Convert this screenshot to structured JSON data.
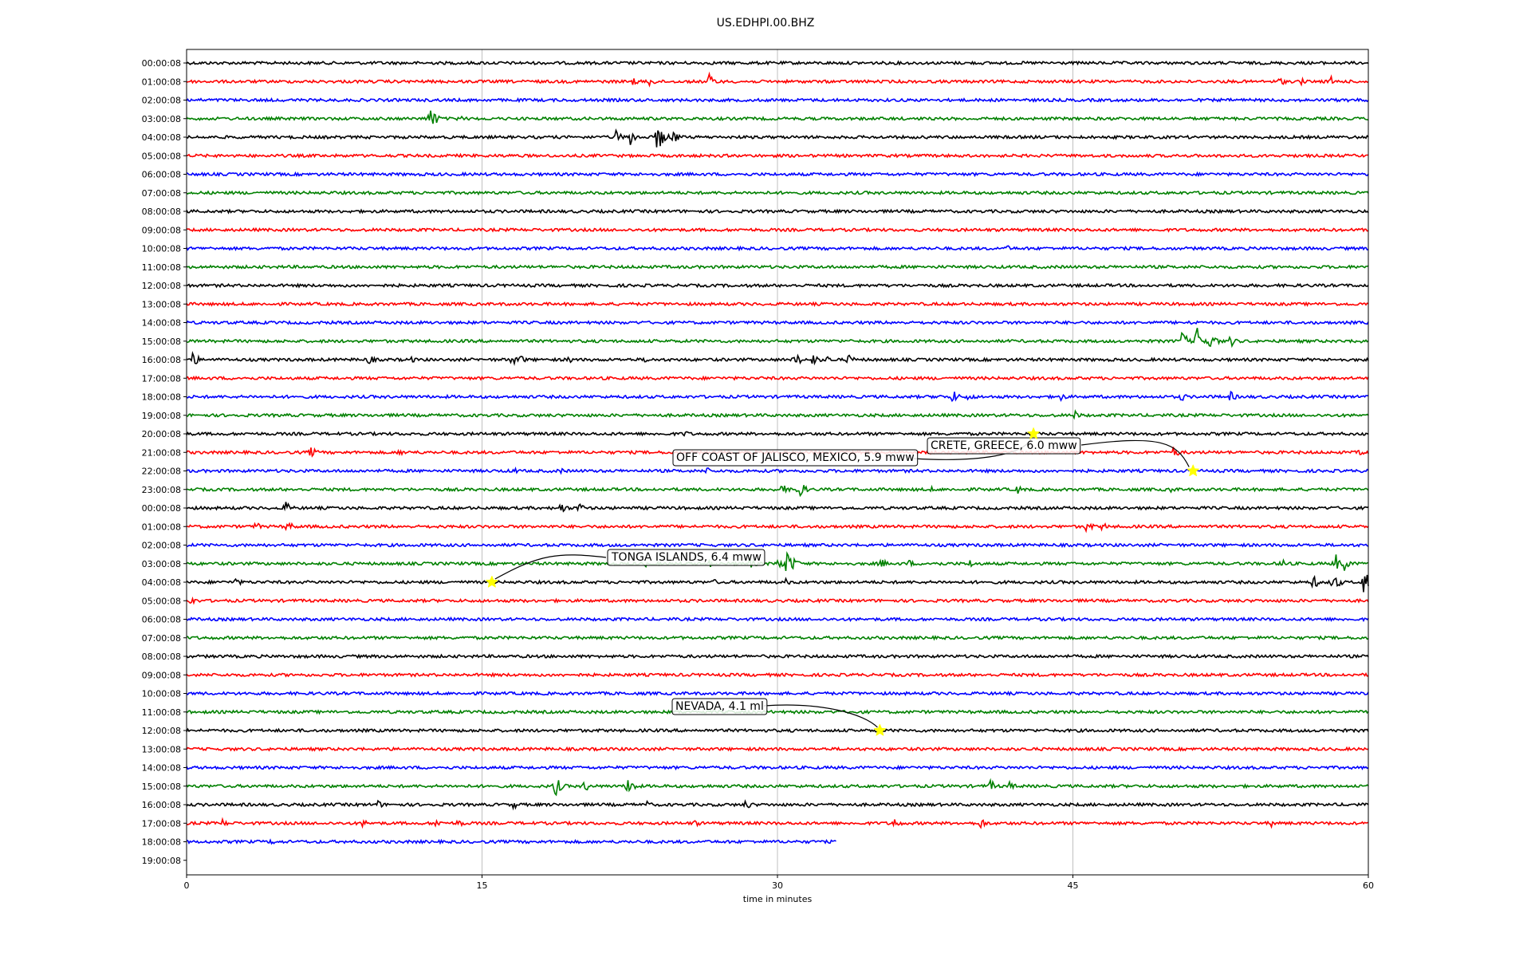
{
  "chart_data": {
    "type": "line",
    "title": "US.EDHPI.00.BHZ",
    "xlabel": "time in minutes",
    "ylabel": "",
    "xlim": [
      0,
      60
    ],
    "x_ticks": [
      0,
      15,
      30,
      45,
      60
    ],
    "grid": "vertical",
    "trace_colors": [
      "#000000",
      "#ff0000",
      "#0000ff",
      "#008000"
    ],
    "row_labels": [
      "00:00:08",
      "01:00:08",
      "02:00:08",
      "03:00:08",
      "04:00:08",
      "05:00:08",
      "06:00:08",
      "07:00:08",
      "08:00:08",
      "09:00:08",
      "10:00:08",
      "11:00:08",
      "12:00:08",
      "13:00:08",
      "14:00:08",
      "15:00:08",
      "16:00:08",
      "17:00:08",
      "18:00:08",
      "19:00:08",
      "20:00:08",
      "21:00:08",
      "22:00:08",
      "23:00:08",
      "00:00:08",
      "01:00:08",
      "02:00:08",
      "03:00:08",
      "04:00:08",
      "05:00:08",
      "06:00:08",
      "07:00:08",
      "08:00:08",
      "09:00:08",
      "10:00:08",
      "11:00:08",
      "12:00:08",
      "13:00:08",
      "14:00:08",
      "15:00:08",
      "16:00:08",
      "17:00:08",
      "18:00:08",
      "19:00:08"
    ],
    "last_trace_end_minute": 33,
    "bursts": [
      {
        "row": 1,
        "t": 22.7,
        "a": 6
      },
      {
        "row": 1,
        "t": 23.5,
        "a": 7
      },
      {
        "row": 1,
        "t": 26.5,
        "a": 11
      },
      {
        "row": 1,
        "t": 55.5,
        "a": 6
      },
      {
        "row": 1,
        "t": 56.5,
        "a": 6
      },
      {
        "row": 1,
        "t": 58.1,
        "a": 7
      },
      {
        "row": 2,
        "t": 58.9,
        "a": 4
      },
      {
        "row": 3,
        "t": 12.3,
        "a": 20
      },
      {
        "row": 3,
        "t": 13.8,
        "a": 5
      },
      {
        "row": 4,
        "t": 21.8,
        "a": 9
      },
      {
        "row": 4,
        "t": 22.5,
        "a": 12
      },
      {
        "row": 4,
        "t": 23.9,
        "a": 20
      },
      {
        "row": 4,
        "t": 24.7,
        "a": 10
      },
      {
        "row": 10,
        "t": 41.7,
        "a": 4
      },
      {
        "row": 14,
        "t": 51.0,
        "a": 6
      },
      {
        "row": 15,
        "t": 50.5,
        "a": 14
      },
      {
        "row": 15,
        "t": 51.3,
        "a": 20
      },
      {
        "row": 15,
        "t": 52.0,
        "a": 12
      },
      {
        "row": 15,
        "t": 53.0,
        "a": 8
      },
      {
        "row": 15,
        "t": 59.3,
        "a": 6
      },
      {
        "row": 16,
        "t": 0.3,
        "a": 10
      },
      {
        "row": 16,
        "t": 9.2,
        "a": 8
      },
      {
        "row": 16,
        "t": 11.3,
        "a": 6
      },
      {
        "row": 16,
        "t": 16.5,
        "a": 8
      },
      {
        "row": 16,
        "t": 16.9,
        "a": 7
      },
      {
        "row": 16,
        "t": 19.4,
        "a": 5
      },
      {
        "row": 16,
        "t": 23.3,
        "a": 5
      },
      {
        "row": 16,
        "t": 30.9,
        "a": 10
      },
      {
        "row": 16,
        "t": 31.8,
        "a": 8
      },
      {
        "row": 16,
        "t": 32.5,
        "a": 6
      },
      {
        "row": 16,
        "t": 33.6,
        "a": 7
      },
      {
        "row": 18,
        "t": 38.0,
        "a": 5
      },
      {
        "row": 18,
        "t": 38.9,
        "a": 9
      },
      {
        "row": 18,
        "t": 39.7,
        "a": 6
      },
      {
        "row": 18,
        "t": 44.3,
        "a": 7
      },
      {
        "row": 18,
        "t": 50.5,
        "a": 6
      },
      {
        "row": 18,
        "t": 53.0,
        "a": 7
      },
      {
        "row": 19,
        "t": 45.1,
        "a": 6
      },
      {
        "row": 20,
        "t": 25.3,
        "a": 5
      },
      {
        "row": 21,
        "t": 6.3,
        "a": 8
      },
      {
        "row": 21,
        "t": 10.8,
        "a": 5
      },
      {
        "row": 21,
        "t": 11.4,
        "a": 5
      },
      {
        "row": 21,
        "t": 50.1,
        "a": 8
      },
      {
        "row": 21,
        "t": 59.6,
        "a": 6
      },
      {
        "row": 22,
        "t": 16.6,
        "a": 5
      },
      {
        "row": 22,
        "t": 18.9,
        "a": 5
      },
      {
        "row": 22,
        "t": 26.4,
        "a": 5
      },
      {
        "row": 23,
        "t": 30.2,
        "a": 8
      },
      {
        "row": 23,
        "t": 31.0,
        "a": 16
      },
      {
        "row": 23,
        "t": 37.7,
        "a": 5
      },
      {
        "row": 23,
        "t": 42.2,
        "a": 6
      },
      {
        "row": 23,
        "t": 50.0,
        "a": 5
      },
      {
        "row": 24,
        "t": 5.0,
        "a": 9
      },
      {
        "row": 24,
        "t": 19.0,
        "a": 8
      },
      {
        "row": 24,
        "t": 19.9,
        "a": 7
      },
      {
        "row": 25,
        "t": 3.5,
        "a": 6
      },
      {
        "row": 25,
        "t": 5.1,
        "a": 8
      },
      {
        "row": 25,
        "t": 45.7,
        "a": 8
      },
      {
        "row": 25,
        "t": 46.5,
        "a": 6
      },
      {
        "row": 27,
        "t": 23.3,
        "a": 4
      },
      {
        "row": 27,
        "t": 26.5,
        "a": 6
      },
      {
        "row": 27,
        "t": 28.6,
        "a": 7
      },
      {
        "row": 27,
        "t": 30.0,
        "a": 10
      },
      {
        "row": 27,
        "t": 30.5,
        "a": 20
      },
      {
        "row": 27,
        "t": 35.2,
        "a": 8
      },
      {
        "row": 27,
        "t": 36.7,
        "a": 5
      },
      {
        "row": 27,
        "t": 38.1,
        "a": 5
      },
      {
        "row": 27,
        "t": 39.8,
        "a": 6
      },
      {
        "row": 27,
        "t": 55.6,
        "a": 8
      },
      {
        "row": 27,
        "t": 58.3,
        "a": 14
      },
      {
        "row": 27,
        "t": 58.8,
        "a": 10
      },
      {
        "row": 28,
        "t": 2.5,
        "a": 6
      },
      {
        "row": 28,
        "t": 26.8,
        "a": 4
      },
      {
        "row": 28,
        "t": 30.4,
        "a": 5
      },
      {
        "row": 28,
        "t": 57.2,
        "a": 9
      },
      {
        "row": 28,
        "t": 58.2,
        "a": 13
      },
      {
        "row": 28,
        "t": 59.8,
        "a": 22
      },
      {
        "row": 29,
        "t": 0.2,
        "a": 6
      },
      {
        "row": 39,
        "t": 18.7,
        "a": 14
      },
      {
        "row": 39,
        "t": 20.2,
        "a": 8
      },
      {
        "row": 39,
        "t": 22.4,
        "a": 14
      },
      {
        "row": 39,
        "t": 26.3,
        "a": 4
      },
      {
        "row": 39,
        "t": 40.8,
        "a": 8
      },
      {
        "row": 39,
        "t": 41.8,
        "a": 6
      },
      {
        "row": 40,
        "t": 9.7,
        "a": 6
      },
      {
        "row": 40,
        "t": 16.6,
        "a": 6
      },
      {
        "row": 40,
        "t": 23.3,
        "a": 6
      },
      {
        "row": 40,
        "t": 28.4,
        "a": 7
      },
      {
        "row": 41,
        "t": 1.8,
        "a": 6
      },
      {
        "row": 41,
        "t": 8.9,
        "a": 6
      },
      {
        "row": 41,
        "t": 12.6,
        "a": 7
      },
      {
        "row": 41,
        "t": 13.8,
        "a": 6
      },
      {
        "row": 41,
        "t": 25.8,
        "a": 5
      },
      {
        "row": 41,
        "t": 35.9,
        "a": 8
      },
      {
        "row": 41,
        "t": 40.3,
        "a": 8
      },
      {
        "row": 41,
        "t": 55.0,
        "a": 6
      },
      {
        "row": 42,
        "t": 4.3,
        "a": 4
      }
    ],
    "annotations": [
      {
        "text": "CRETE, GREECE, 6.0 mww",
        "event_row": 20,
        "event_minute": 43.0,
        "second_row": 22,
        "second_minute": 51.1
      },
      {
        "text": "OFF COAST OF JALISCO, MEXICO, 5.9 mww",
        "event_row": 20,
        "event_minute": 43.0
      },
      {
        "text": "TONGA ISLANDS, 6.4 mww",
        "event_row": 28,
        "event_minute": 15.5
      },
      {
        "text": "NEVADA, 4.1 ml",
        "event_row": 36,
        "event_minute": 35.2
      }
    ],
    "marker_color": "#ffff00"
  }
}
